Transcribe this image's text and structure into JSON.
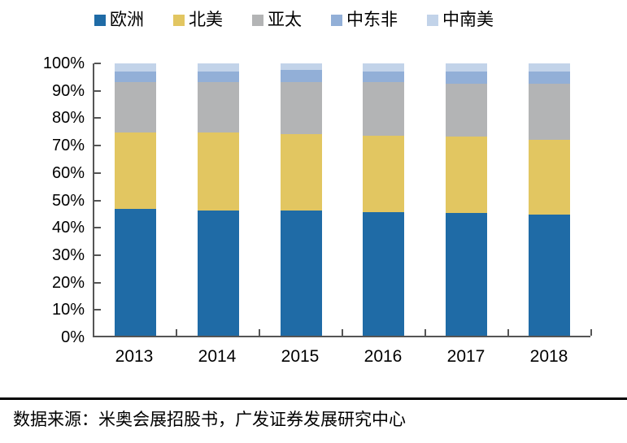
{
  "chart_data": {
    "type": "bar",
    "variant": "stacked-100-percent",
    "title": "",
    "xlabel": "",
    "ylabel": "",
    "categories": [
      "2013",
      "2014",
      "2015",
      "2016",
      "2017",
      "2018"
    ],
    "series": [
      {
        "name": "欧洲",
        "key": "europe",
        "color": "#1F6BA6",
        "values": [
          46.5,
          46.0,
          46.0,
          45.5,
          45.0,
          44.5
        ]
      },
      {
        "name": "北美",
        "key": "north-america",
        "color": "#E2C661",
        "values": [
          28.0,
          28.5,
          28.0,
          28.0,
          28.0,
          27.5
        ]
      },
      {
        "name": "亚太",
        "key": "asia-pacific",
        "color": "#B3B4B5",
        "values": [
          18.5,
          18.5,
          19.0,
          19.5,
          19.5,
          20.5
        ]
      },
      {
        "name": "中东非",
        "key": "middle-east-africa",
        "color": "#92AFD7",
        "values": [
          4.0,
          4.0,
          4.5,
          4.0,
          4.5,
          4.5
        ]
      },
      {
        "name": "中南美",
        "key": "central-south-america",
        "color": "#C2D3E9",
        "values": [
          3.0,
          3.0,
          2.5,
          3.0,
          3.0,
          3.0
        ]
      }
    ],
    "y_ticks": [
      "0%",
      "10%",
      "20%",
      "30%",
      "40%",
      "50%",
      "60%",
      "70%",
      "80%",
      "90%",
      "100%"
    ],
    "ylim": [
      0,
      100
    ],
    "grid": false,
    "legend_position": "top"
  },
  "footer": {
    "source_text": "数据来源：米奥会展招股书，广发证券发展研究中心"
  },
  "style": {
    "axis_color": "#555555",
    "text_color": "#000000",
    "background": "#FFFFFF"
  }
}
